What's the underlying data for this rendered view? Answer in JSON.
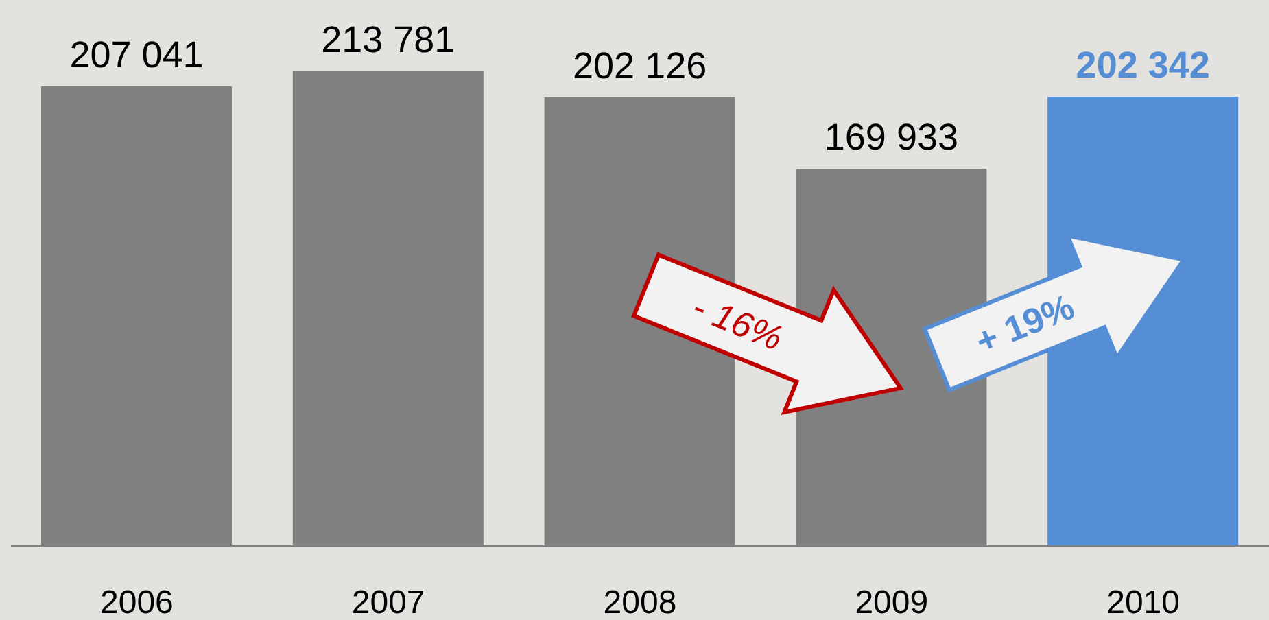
{
  "chart_data": {
    "type": "bar",
    "categories": [
      "2006",
      "2007",
      "2008",
      "2009",
      "2010"
    ],
    "values": [
      207041,
      213781,
      202126,
      169933,
      202342
    ],
    "value_labels": [
      "207 041",
      "213 781",
      "202 126",
      "169 933",
      "202 342"
    ],
    "colors": [
      "#808080",
      "#808080",
      "#808080",
      "#808080",
      "#558ed5"
    ],
    "annotations": [
      "- 16%",
      "+ 19%"
    ]
  }
}
